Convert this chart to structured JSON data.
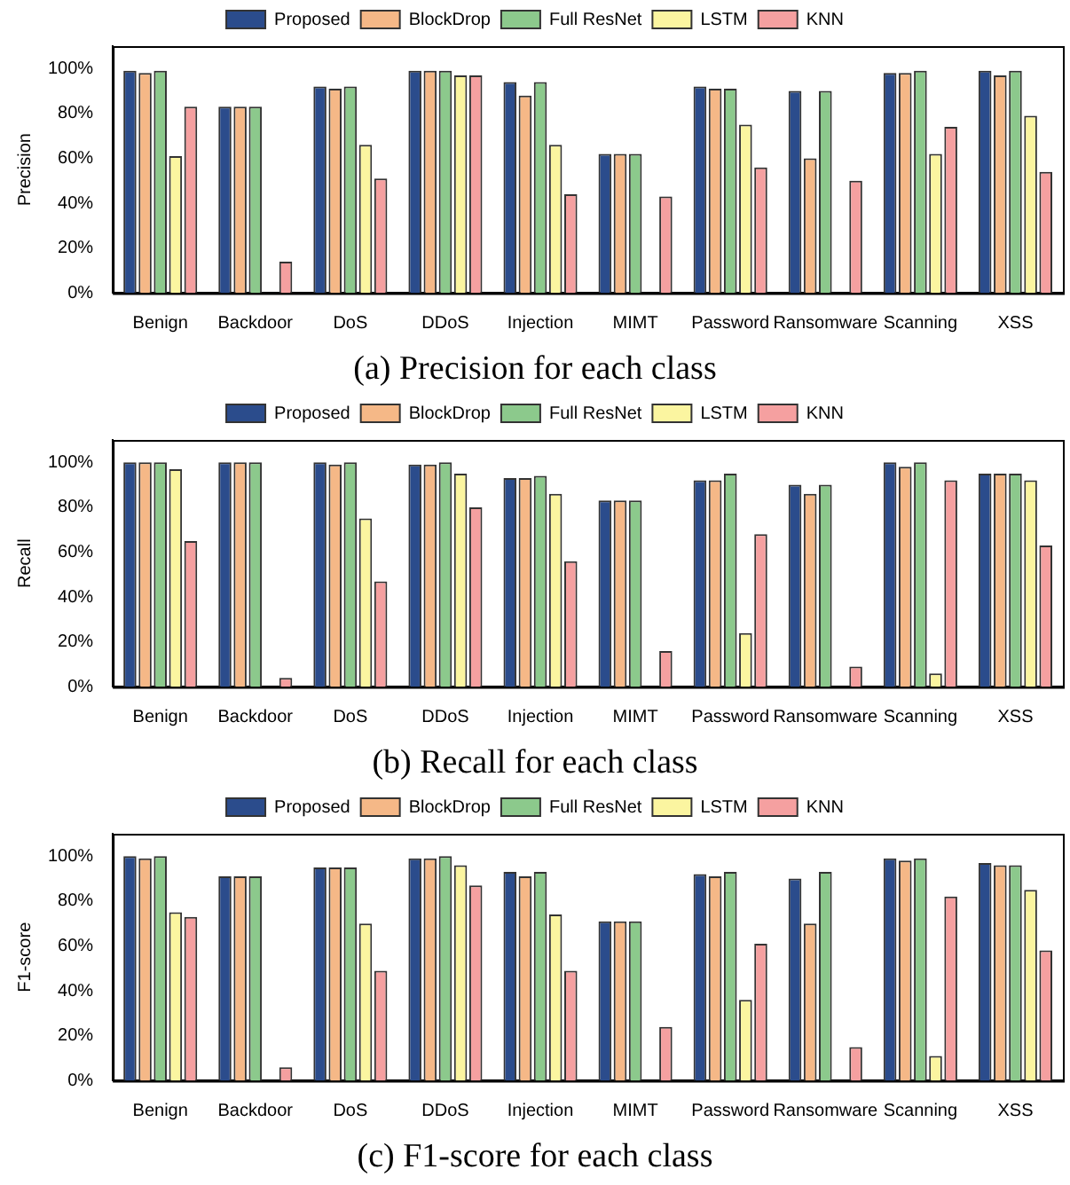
{
  "chart_data": [
    {
      "type": "bar",
      "title": "(a) Precision for each class",
      "ylabel": "Precision",
      "categories": [
        "Benign",
        "Backdoor",
        "DoS",
        "DDoS",
        "Injection",
        "MIMT",
        "Password",
        "Ransomware",
        "Scanning",
        "XSS"
      ],
      "ylim": [
        0,
        110
      ],
      "yticks": [
        {
          "value": 0,
          "label": "0%"
        },
        {
          "value": 20,
          "label": "20%"
        },
        {
          "value": 40,
          "label": "40%"
        },
        {
          "value": 60,
          "label": "60%"
        },
        {
          "value": 80,
          "label": "80%"
        },
        {
          "value": 100,
          "label": "100%"
        }
      ],
      "grid": false,
      "legend": "top",
      "series": [
        {
          "name": "Proposed",
          "color": "#2b4c8c",
          "values": [
            99,
            83,
            92,
            99,
            94,
            62,
            92,
            90,
            98,
            99
          ]
        },
        {
          "name": "BlockDrop",
          "color": "#f5b887",
          "values": [
            98,
            83,
            91,
            99,
            88,
            62,
            91,
            60,
            98,
            97
          ]
        },
        {
          "name": "Full ResNet",
          "color": "#8cc98c",
          "values": [
            99,
            83,
            92,
            99,
            94,
            62,
            91,
            90,
            99,
            99
          ]
        },
        {
          "name": "LSTM",
          "color": "#fbf5a0",
          "values": [
            61,
            0,
            66,
            97,
            66,
            0,
            75,
            0,
            62,
            79
          ]
        },
        {
          "name": "KNN",
          "color": "#f5a0a0",
          "values": [
            83,
            14,
            51,
            97,
            44,
            43,
            56,
            50,
            74,
            54
          ]
        }
      ]
    },
    {
      "type": "bar",
      "title": "(b) Recall for each class",
      "ylabel": "Recall",
      "categories": [
        "Benign",
        "Backdoor",
        "DoS",
        "DDoS",
        "Injection",
        "MIMT",
        "Password",
        "Ransomware",
        "Scanning",
        "XSS"
      ],
      "ylim": [
        0,
        110
      ],
      "yticks": [
        {
          "value": 0,
          "label": "0%"
        },
        {
          "value": 20,
          "label": "20%"
        },
        {
          "value": 40,
          "label": "40%"
        },
        {
          "value": 60,
          "label": "60%"
        },
        {
          "value": 80,
          "label": "80%"
        },
        {
          "value": 100,
          "label": "100%"
        }
      ],
      "grid": false,
      "legend": "top",
      "series": [
        {
          "name": "Proposed",
          "color": "#2b4c8c",
          "values": [
            100,
            100,
            100,
            99,
            93,
            83,
            92,
            90,
            100,
            95
          ]
        },
        {
          "name": "BlockDrop",
          "color": "#f5b887",
          "values": [
            100,
            100,
            99,
            99,
            93,
            83,
            92,
            86,
            98,
            95
          ]
        },
        {
          "name": "Full ResNet",
          "color": "#8cc98c",
          "values": [
            100,
            100,
            100,
            100,
            94,
            83,
            95,
            90,
            100,
            95
          ]
        },
        {
          "name": "LSTM",
          "color": "#fbf5a0",
          "values": [
            97,
            0,
            75,
            95,
            86,
            0,
            24,
            0,
            6,
            92
          ]
        },
        {
          "name": "KNN",
          "color": "#f5a0a0",
          "values": [
            65,
            4,
            47,
            80,
            56,
            16,
            68,
            9,
            92,
            63
          ]
        }
      ]
    },
    {
      "type": "bar",
      "title": "(c) F1-score for each class",
      "ylabel": "F1-score",
      "categories": [
        "Benign",
        "Backdoor",
        "DoS",
        "DDoS",
        "Injection",
        "MIMT",
        "Password",
        "Ransomware",
        "Scanning",
        "XSS"
      ],
      "ylim": [
        0,
        110
      ],
      "yticks": [
        {
          "value": 0,
          "label": "0%"
        },
        {
          "value": 20,
          "label": "20%"
        },
        {
          "value": 40,
          "label": "40%"
        },
        {
          "value": 60,
          "label": "60%"
        },
        {
          "value": 80,
          "label": "80%"
        },
        {
          "value": 100,
          "label": "100%"
        }
      ],
      "grid": false,
      "legend": "top",
      "series": [
        {
          "name": "Proposed",
          "color": "#2b4c8c",
          "values": [
            100,
            91,
            95,
            99,
            93,
            71,
            92,
            90,
            99,
            97
          ]
        },
        {
          "name": "BlockDrop",
          "color": "#f5b887",
          "values": [
            99,
            91,
            95,
            99,
            91,
            71,
            91,
            70,
            98,
            96
          ]
        },
        {
          "name": "Full ResNet",
          "color": "#8cc98c",
          "values": [
            100,
            91,
            95,
            100,
            93,
            71,
            93,
            93,
            99,
            96
          ]
        },
        {
          "name": "LSTM",
          "color": "#fbf5a0",
          "values": [
            75,
            0,
            70,
            96,
            74,
            0,
            36,
            0,
            11,
            85
          ]
        },
        {
          "name": "KNN",
          "color": "#f5a0a0",
          "values": [
            73,
            6,
            49,
            87,
            49,
            24,
            61,
            15,
            82,
            58
          ]
        }
      ]
    }
  ]
}
